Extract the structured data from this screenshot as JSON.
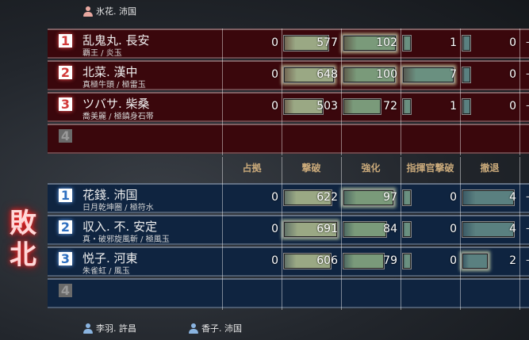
{
  "result_label": "敗北",
  "top_player": {
    "name": "氷花. 沛国",
    "icon": "person-icon",
    "color": "#e8a8a0"
  },
  "bottom_players": [
    {
      "name": "李羽. 許昌",
      "icon": "person-icon",
      "color": "#8ab4e0"
    },
    {
      "name": "香子. 沛国",
      "icon": "person-icon",
      "color": "#8ab4e0"
    }
  ],
  "columns": [
    "占拠",
    "撃破",
    "強化",
    "指揮官撃破",
    "撤退"
  ],
  "colors": {
    "red_team": "#3a070c",
    "blue_team": "#0f2440",
    "bar_kills": "#9aa884",
    "bar_enhance": "#7a9a7a",
    "bar_cmd": "#6a9080",
    "bar_retreat": "#5a8080"
  },
  "red_team": [
    {
      "rank": "1",
      "name": "乱鬼丸. 長安",
      "sub": "覇王 / 炎玉",
      "capture": "0",
      "kills": "577",
      "enhance": "102",
      "cmd": "1",
      "retreat": "0",
      "extra": "-",
      "hl": {
        "kills": false,
        "enhance": true,
        "cmd": false,
        "retreat": false
      }
    },
    {
      "rank": "2",
      "name": "北菜. 漢中",
      "sub": "真極牛頭 / 極雷玉",
      "capture": "0",
      "kills": "648",
      "enhance": "100",
      "cmd": "7",
      "retreat": "0",
      "extra": "-",
      "hl": {
        "kills": true,
        "enhance": true,
        "cmd": true,
        "retreat": false
      }
    },
    {
      "rank": "3",
      "name": "ツバサ. 柴桑",
      "sub": "喬美麗 / 極鎮身石帯",
      "capture": "0",
      "kills": "503",
      "enhance": "72",
      "cmd": "1",
      "retreat": "0",
      "extra": "-",
      "hl": {
        "kills": false,
        "enhance": false,
        "cmd": false,
        "retreat": false
      }
    },
    {
      "rank": "4",
      "empty": true
    }
  ],
  "blue_team": [
    {
      "rank": "1",
      "name": "花錢. 沛国",
      "sub": "日月乾坤圏 / 極符水",
      "capture": "0",
      "kills": "622",
      "enhance": "97",
      "cmd": "0",
      "retreat": "4",
      "extra": "-",
      "hl": {
        "kills": false,
        "enhance": true,
        "cmd": false,
        "retreat": false
      }
    },
    {
      "rank": "2",
      "name": "収入. 不. 安定",
      "sub": "真・破邪旋風斬 / 極風玉",
      "capture": "0",
      "kills": "691",
      "enhance": "84",
      "cmd": "0",
      "retreat": "4",
      "extra": "-",
      "hl": {
        "kills": true,
        "enhance": false,
        "cmd": false,
        "retreat": false
      }
    },
    {
      "rank": "3",
      "name": "悦子. 河東",
      "sub": "朱雀虹 / 風玉",
      "capture": "0",
      "kills": "606",
      "enhance": "79",
      "cmd": "0",
      "retreat": "2",
      "extra": "-",
      "hl": {
        "kills": false,
        "enhance": false,
        "cmd": false,
        "retreat": true
      }
    },
    {
      "rank": "4",
      "empty": true
    }
  ]
}
